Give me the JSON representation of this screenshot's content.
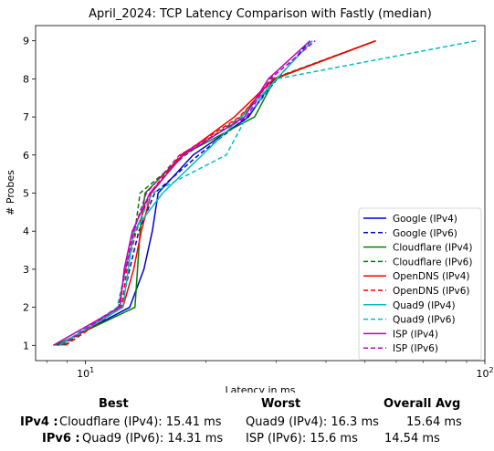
{
  "chart_data": {
    "type": "line",
    "title": "April_2024: TCP Latency Comparison with Fastly (median)",
    "xlabel": "Latency in ms",
    "ylabel": "# Probes",
    "xscale": "log",
    "xlim": [
      7.5,
      100
    ],
    "ylim": [
      0.6,
      9.4
    ],
    "xticks": [
      {
        "value": 10,
        "label": "10^1"
      },
      {
        "value": 100,
        "label": "10^2"
      }
    ],
    "yticks": [
      1,
      2,
      3,
      4,
      5,
      6,
      7,
      8,
      9
    ],
    "grid": false,
    "legend_position": "lower-right",
    "series": [
      {
        "name": "Google (IPv4)",
        "color": "#0000cd",
        "dash": "solid",
        "points": [
          [
            8.5,
            1
          ],
          [
            12.9,
            2
          ],
          [
            14,
            3
          ],
          [
            14.7,
            4
          ],
          [
            15.2,
            5
          ],
          [
            18.6,
            6
          ],
          [
            25.6,
            7
          ],
          [
            29.7,
            8
          ],
          [
            53.3,
            9
          ]
        ]
      },
      {
        "name": "Google (IPv6)",
        "color": "#0000cd",
        "dash": "dashed",
        "points": [
          [
            8.9,
            1
          ],
          [
            12.3,
            2
          ],
          [
            12.9,
            3
          ],
          [
            13.6,
            4
          ],
          [
            14.9,
            5
          ],
          [
            19.2,
            6
          ],
          [
            25.4,
            7
          ],
          [
            30.2,
            8
          ],
          [
            36.5,
            9
          ]
        ]
      },
      {
        "name": "Cloudflare (IPv4)",
        "color": "#008000",
        "dash": "solid",
        "points": [
          [
            8.4,
            1
          ],
          [
            13.3,
            2
          ],
          [
            13.5,
            3
          ],
          [
            13.7,
            4
          ],
          [
            14.1,
            5
          ],
          [
            17.5,
            6
          ],
          [
            26.5,
            7
          ],
          [
            29.8,
            8
          ],
          [
            53.3,
            9
          ]
        ]
      },
      {
        "name": "Cloudflare (IPv6)",
        "color": "#008000",
        "dash": "dashed",
        "points": [
          [
            8.8,
            1
          ],
          [
            12.1,
            2
          ],
          [
            12.6,
            3
          ],
          [
            13.3,
            4
          ],
          [
            13.7,
            5
          ],
          [
            17.8,
            6
          ],
          [
            24.5,
            7
          ],
          [
            29.3,
            8
          ],
          [
            53.3,
            9
          ]
        ]
      },
      {
        "name": "OpenDNS (IPv4)",
        "color": "#ff0000",
        "dash": "solid",
        "points": [
          [
            8.6,
            1
          ],
          [
            12.4,
            2
          ],
          [
            13.2,
            3
          ],
          [
            13.8,
            4
          ],
          [
            14.6,
            5
          ],
          [
            17.5,
            6
          ],
          [
            23.6,
            7
          ],
          [
            29.6,
            8
          ],
          [
            53.3,
            9
          ]
        ]
      },
      {
        "name": "OpenDNS (IPv6)",
        "color": "#ff0000",
        "dash": "dashed",
        "points": [
          [
            8.9,
            1
          ],
          [
            12.3,
            2
          ],
          [
            12.7,
            3
          ],
          [
            13.4,
            4
          ],
          [
            14.5,
            5
          ],
          [
            17.3,
            6
          ],
          [
            24.3,
            7
          ],
          [
            29.6,
            8
          ],
          [
            53.3,
            9
          ]
        ]
      },
      {
        "name": "Quad9 (IPv4)",
        "color": "#00bfbf",
        "dash": "solid",
        "points": [
          [
            8.6,
            1
          ],
          [
            12.4,
            2
          ],
          [
            12.8,
            3
          ],
          [
            13.2,
            4
          ],
          [
            15.6,
            5
          ],
          [
            19.6,
            6
          ],
          [
            24.6,
            7
          ],
          [
            30.1,
            8
          ],
          [
            37,
            9
          ]
        ]
      },
      {
        "name": "Quad9 (IPv6)",
        "color": "#00bfbf",
        "dash": "dashed",
        "points": [
          [
            8.6,
            1
          ],
          [
            12,
            2
          ],
          [
            12.6,
            3
          ],
          [
            13.3,
            4
          ],
          [
            14.7,
            5
          ],
          [
            22.5,
            6
          ],
          [
            25.3,
            7
          ],
          [
            30.1,
            8
          ],
          [
            95,
            9
          ]
        ]
      },
      {
        "name": "ISP (IPv4)",
        "color": "#bf00bf",
        "dash": "solid",
        "points": [
          [
            8.3,
            1
          ],
          [
            12.2,
            2
          ],
          [
            12.5,
            3
          ],
          [
            13.1,
            4
          ],
          [
            14.5,
            5
          ],
          [
            17.6,
            6
          ],
          [
            25,
            7
          ],
          [
            28.7,
            8
          ],
          [
            36.5,
            9
          ]
        ]
      },
      {
        "name": "ISP (IPv6)",
        "color": "#bf00bf",
        "dash": "dashed",
        "points": [
          [
            8.7,
            1
          ],
          [
            12.1,
            2
          ],
          [
            12.6,
            3
          ],
          [
            13.2,
            4
          ],
          [
            14.2,
            5
          ],
          [
            17.2,
            6
          ],
          [
            25.3,
            7
          ],
          [
            29,
            8
          ],
          [
            37.6,
            9
          ]
        ]
      }
    ]
  },
  "summary": {
    "headers": {
      "best": "Best",
      "worst": "Worst",
      "avg": "Overall Avg"
    },
    "rows": [
      {
        "label": "IPv4 :",
        "best": "Cloudflare (IPv4): 15.41 ms",
        "worst": "Quad9 (IPv4): 16.3 ms",
        "avg": "15.64 ms"
      },
      {
        "label": "IPv6 :",
        "best": "Quad9 (IPv6): 14.31 ms",
        "worst": "ISP (IPv6): 15.6 ms",
        "avg": "14.54 ms"
      }
    ]
  }
}
